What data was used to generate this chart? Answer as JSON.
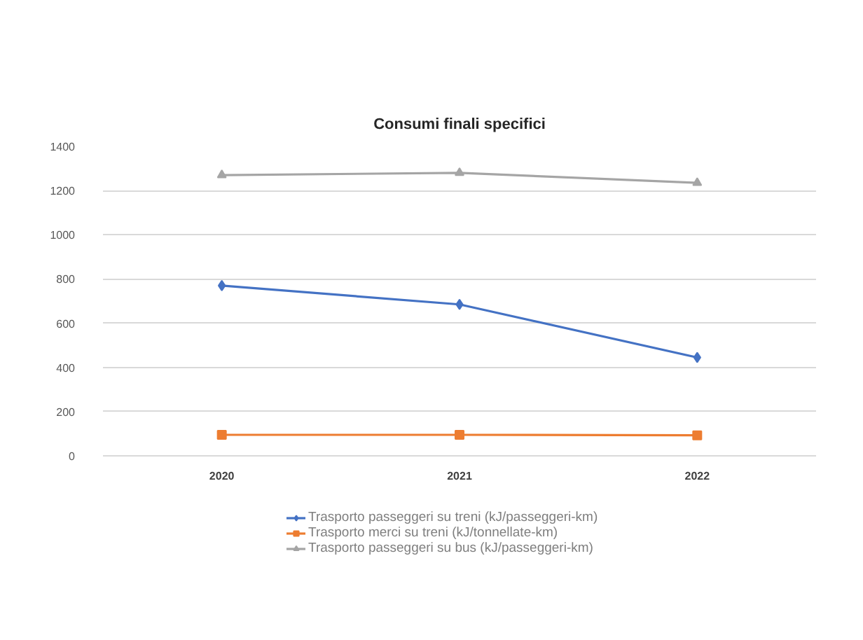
{
  "chart_data": {
    "type": "line",
    "title": "Consumi finali specifici",
    "categories": [
      "2020",
      "2021",
      "2022"
    ],
    "series": [
      {
        "name": "Trasporto passeggeri su treni (kJ/passeggeri-km)",
        "color": "#4472c4",
        "marker": "diamond",
        "values": [
          770,
          685,
          445
        ]
      },
      {
        "name": "Trasporto merci su treni (kJ/tonnellate-km)",
        "color": "#ed7d31",
        "marker": "square",
        "values": [
          95,
          95,
          93
        ]
      },
      {
        "name": "Trasporto passeggeri su bus (kJ/passeggeri-km)",
        "color": "#a5a5a5",
        "marker": "triangle",
        "values": [
          1270,
          1280,
          1235
        ]
      }
    ],
    "ylim": [
      0,
      1400
    ],
    "yticks": [
      0,
      200,
      400,
      600,
      800,
      1000,
      1200,
      1400
    ],
    "grid": "y",
    "legend": "bottom",
    "line_style": "solid"
  }
}
